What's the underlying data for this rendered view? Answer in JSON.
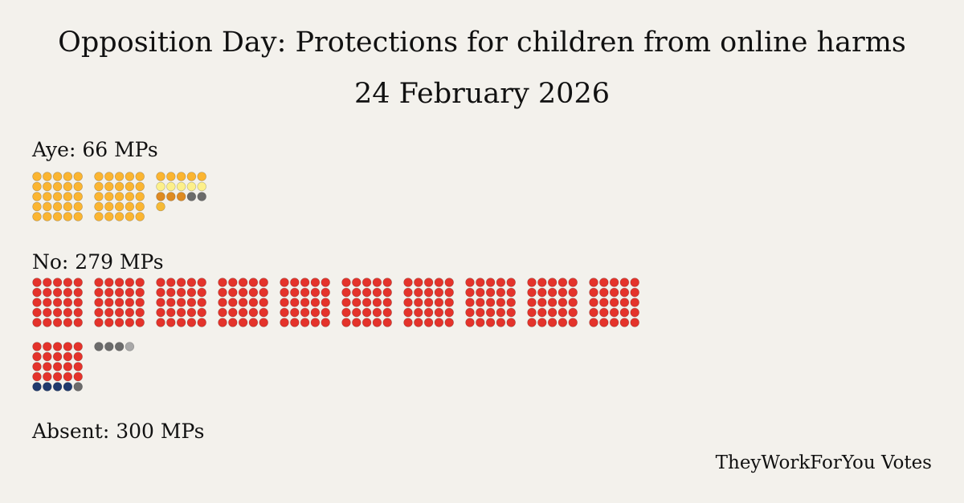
{
  "header": {
    "title": "Opposition Day: Protections for children from online harms",
    "date": "24 February 2026"
  },
  "groups": [
    {
      "label": "Aye: 66 MPs",
      "segments": [
        {
          "color": "#fbb531",
          "count": 55
        },
        {
          "color": "#fdf08a",
          "count": 5
        },
        {
          "color": "#de8a22",
          "count": 3
        },
        {
          "color": "#6b6b6b",
          "count": 2
        },
        {
          "color": "#f6ba35",
          "count": 1
        }
      ]
    },
    {
      "label": "No: 279 MPs",
      "segments": [
        {
          "color": "#e4332b",
          "count": 270
        },
        {
          "color": "#1f3a6e",
          "count": 4
        },
        {
          "color": "#6b6b6b",
          "count": 4
        },
        {
          "color": "#a8a8a8",
          "count": 1
        }
      ]
    },
    {
      "label": "Absent: 300 MPs",
      "segments": []
    }
  ],
  "footer": "TheyWorkForYou Votes"
}
